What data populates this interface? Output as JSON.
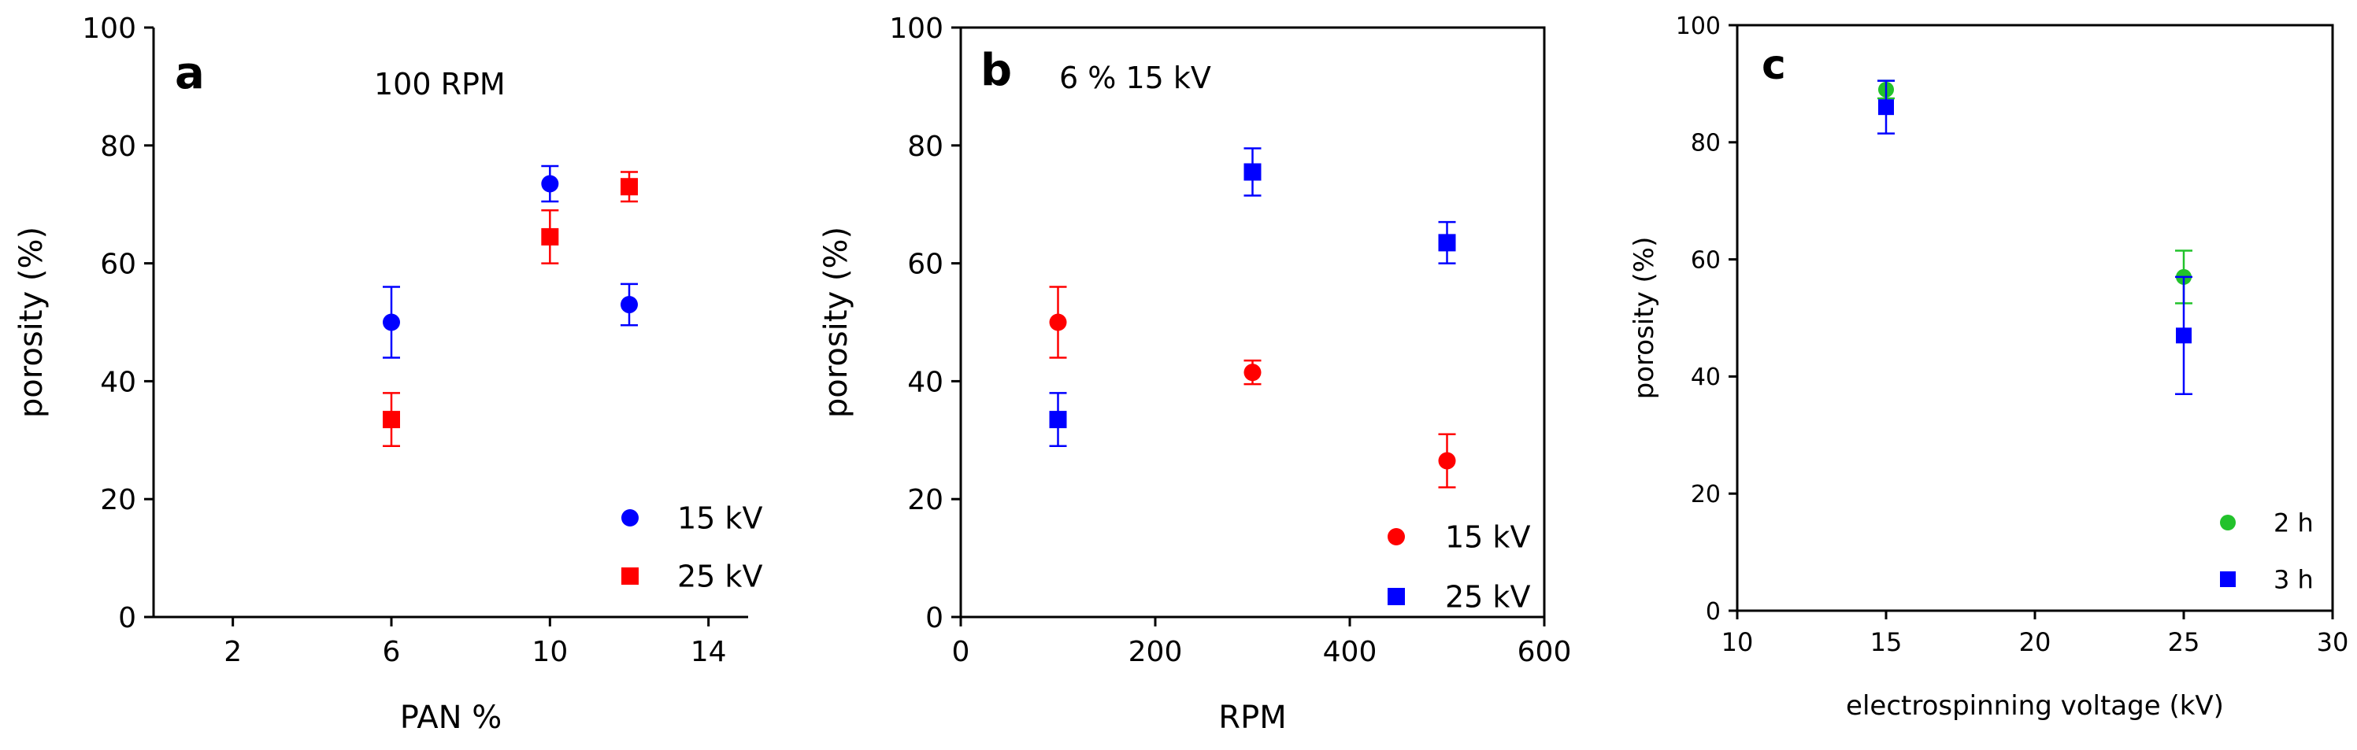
{
  "chart_data": [
    {
      "type": "scatter",
      "panel_label": "a",
      "annotation": "100 RPM",
      "xlabel": "PAN %",
      "ylabel": "porosity (%)",
      "xlim": [
        0,
        15
      ],
      "ylim": [
        0,
        100
      ],
      "xticks": [
        2,
        6,
        10,
        14
      ],
      "yticks": [
        0,
        20,
        40,
        60,
        80,
        100
      ],
      "legend_position": "bottom-right",
      "series": [
        {
          "name": "15 kV",
          "marker": "circle",
          "color": "#0000ff",
          "points": [
            {
              "x": 6,
              "y": 50,
              "err": 6
            },
            {
              "x": 10,
              "y": 73.5,
              "err": 3
            },
            {
              "x": 12,
              "y": 53,
              "err": 3.5
            }
          ]
        },
        {
          "name": "25 kV",
          "marker": "square",
          "color": "#ff0000",
          "points": [
            {
              "x": 6,
              "y": 33.5,
              "err": 4.5
            },
            {
              "x": 10,
              "y": 64.5,
              "err": 4.5
            },
            {
              "x": 12,
              "y": 73,
              "err": 2.5
            }
          ]
        }
      ]
    },
    {
      "type": "scatter",
      "panel_label": "b",
      "annotation": "6 % 15 kV",
      "xlabel": "RPM",
      "ylabel": "porosity (%)",
      "xlim": [
        0,
        600
      ],
      "ylim": [
        0,
        100
      ],
      "xticks": [
        0,
        200,
        400,
        600
      ],
      "yticks": [
        0,
        20,
        40,
        60,
        80,
        100
      ],
      "legend_position": "bottom-right",
      "series": [
        {
          "name": "15 kV",
          "marker": "circle",
          "color": "#ff0000",
          "points": [
            {
              "x": 100,
              "y": 50,
              "err": 6
            },
            {
              "x": 300,
              "y": 41.5,
              "err": 2
            },
            {
              "x": 500,
              "y": 26.5,
              "err": 4.5
            }
          ]
        },
        {
          "name": "25 kV",
          "marker": "square",
          "color": "#0000ff",
          "points": [
            {
              "x": 100,
              "y": 33.5,
              "err": 4.5
            },
            {
              "x": 300,
              "y": 75.5,
              "err": 4
            },
            {
              "x": 500,
              "y": 63.5,
              "err": 3.5
            }
          ]
        }
      ]
    },
    {
      "type": "scatter",
      "panel_label": "c",
      "annotation": "",
      "xlabel": "electrospinning voltage (kV)",
      "ylabel": "porosity (%)",
      "xlim": [
        10,
        30
      ],
      "ylim": [
        0,
        100
      ],
      "xticks": [
        10,
        15,
        20,
        25,
        30
      ],
      "yticks": [
        0,
        20,
        40,
        60,
        80,
        100
      ],
      "legend_position": "bottom-right",
      "series": [
        {
          "name": "2 h",
          "marker": "circle",
          "color": "#22c22b",
          "points": [
            {
              "x": 15,
              "y": 89,
              "err": 1.5
            },
            {
              "x": 25,
              "y": 57,
              "err": 4.5
            }
          ]
        },
        {
          "name": "3 h",
          "marker": "square",
          "color": "#0000ff",
          "points": [
            {
              "x": 15,
              "y": 86,
              "err": 4.5
            },
            {
              "x": 25,
              "y": 47,
              "err": 10
            }
          ]
        }
      ]
    }
  ]
}
